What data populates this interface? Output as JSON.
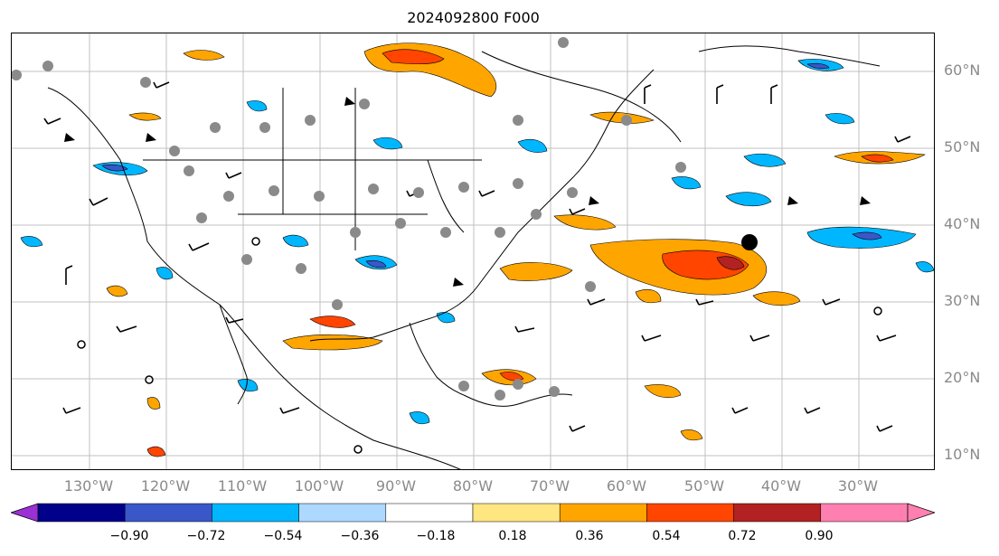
{
  "title": "2024092800 F000",
  "lat_labels": [
    "60°N",
    "50°N",
    "40°N",
    "30°N",
    "20°N",
    "10°N"
  ],
  "lon_labels": [
    "130°W",
    "120°W",
    "110°W",
    "100°W",
    "90°W",
    "80°W",
    "70°W",
    "60°W",
    "50°W",
    "40°W",
    "30°W"
  ],
  "colorbar": {
    "ticks": [
      "−0.90",
      "−0.72",
      "−0.54",
      "−0.36",
      "−0.18",
      "0.18",
      "0.36",
      "0.54",
      "0.72",
      "0.90"
    ],
    "colors": [
      "#9b30d4",
      "#00008b",
      "#3a57c9",
      "#00b7ff",
      "#add8ff",
      "#ffffff",
      "#ffe680",
      "#ffa500",
      "#ff4500",
      "#b22222",
      "#ff80b0",
      "#ff80b0"
    ]
  },
  "colors": {
    "grid": "#b0b0b0",
    "coast": "#000000",
    "label": "#8a8a8a"
  }
}
